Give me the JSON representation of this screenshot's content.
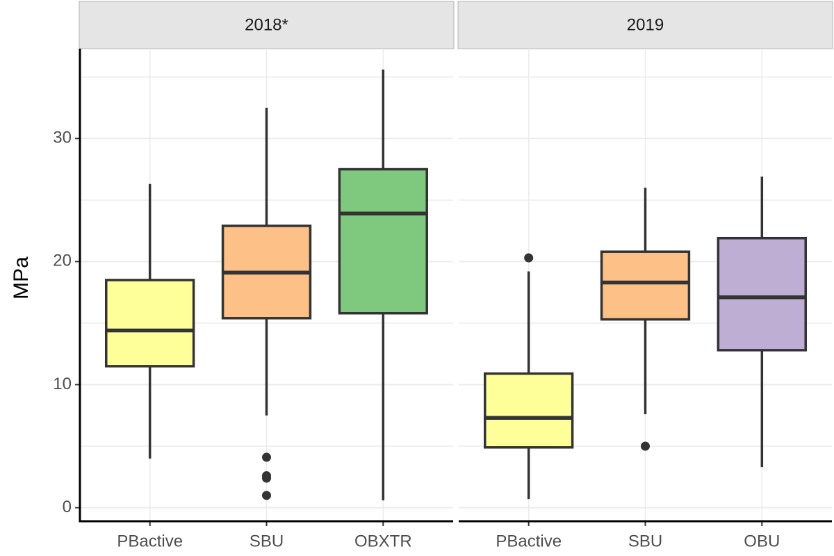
{
  "chart_data": [
    {
      "type": "boxplot",
      "title": "2018*",
      "ylabel": "MPa",
      "categories": [
        "PBactive",
        "SBU",
        "OBXTR"
      ],
      "colors": [
        "#FFFF99",
        "#FDC086",
        "#7FC97F"
      ],
      "boxes": [
        {
          "whislo": 4.0,
          "q1": 11.5,
          "med": 14.4,
          "q3": 18.5,
          "whishi": 26.3,
          "fliers": []
        },
        {
          "whislo": 7.5,
          "q1": 15.4,
          "med": 19.1,
          "q3": 22.9,
          "whishi": 32.5,
          "fliers": [
            4.1,
            2.6,
            2.4,
            1.0
          ]
        },
        {
          "whislo": 0.6,
          "q1": 15.8,
          "med": 23.9,
          "q3": 27.5,
          "whishi": 35.6,
          "fliers": []
        }
      ],
      "ylim": [
        -1.1,
        37.3
      ],
      "yticks": [
        0,
        10,
        20,
        30
      ],
      "grid": true
    },
    {
      "type": "boxplot",
      "title": "2019",
      "categories": [
        "PBactive",
        "SBU",
        "OBU"
      ],
      "colors": [
        "#FFFF99",
        "#FDC086",
        "#BEAED4"
      ],
      "boxes": [
        {
          "whislo": 0.7,
          "q1": 4.9,
          "med": 7.3,
          "q3": 10.9,
          "whishi": 19.2,
          "fliers": [
            20.3
          ]
        },
        {
          "whislo": 7.6,
          "q1": 15.3,
          "med": 18.3,
          "q3": 20.8,
          "whishi": 26.0,
          "fliers": [
            5.0
          ]
        },
        {
          "whislo": 3.3,
          "q1": 12.8,
          "med": 17.1,
          "q3": 21.9,
          "whishi": 26.9,
          "fliers": []
        }
      ],
      "ylim": [
        -1.1,
        37.3
      ],
      "yticks": [
        0,
        10,
        20,
        30
      ],
      "grid": true
    }
  ]
}
